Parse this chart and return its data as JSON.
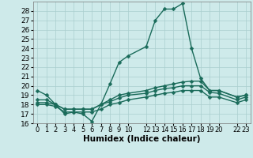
{
  "background_color": "#ceeaea",
  "grid_color": "#aacece",
  "line_color": "#1a6b5a",
  "line_width": 1.0,
  "marker": "D",
  "marker_size": 2.5,
  "xlabel": "Humidex (Indice chaleur)",
  "xlabel_fontsize": 7.5,
  "ylabel_fontsize": 6.5,
  "tick_fontsize": 6.0,
  "ylim": [
    16,
    29
  ],
  "yticks": [
    16,
    17,
    18,
    19,
    20,
    21,
    22,
    23,
    24,
    25,
    26,
    27,
    28
  ],
  "xlim": [
    -0.5,
    23.5
  ],
  "xtick_positions": [
    0,
    1,
    2,
    3,
    4,
    5,
    6,
    7,
    8,
    9,
    10,
    12,
    13,
    14,
    15,
    16,
    17,
    18,
    19,
    20,
    22,
    23
  ],
  "xtick_labels": [
    "0",
    "1",
    "2",
    "3",
    "4",
    "5",
    "6",
    "7",
    "8",
    "9",
    "10",
    "12",
    "13",
    "14",
    "15",
    "16",
    "17",
    "18",
    "19",
    "20",
    "22",
    "23"
  ],
  "series": [
    {
      "x": [
        0,
        1,
        2,
        3,
        4,
        5,
        6,
        7,
        8,
        9,
        10,
        12,
        13,
        14,
        15,
        16,
        17,
        18,
        19,
        20,
        22,
        23
      ],
      "y": [
        19.5,
        19.0,
        18.0,
        17.0,
        17.2,
        17.0,
        16.2,
        18.0,
        20.2,
        22.5,
        23.2,
        24.2,
        27.0,
        28.2,
        28.2,
        28.8,
        24.0,
        20.8,
        19.5,
        19.5,
        18.8,
        19.0
      ]
    },
    {
      "x": [
        0,
        1,
        2,
        3,
        4,
        5,
        6,
        7,
        8,
        9,
        10,
        12,
        13,
        14,
        15,
        16,
        17,
        18,
        19,
        20,
        22,
        23
      ],
      "y": [
        18.5,
        18.5,
        18.0,
        17.5,
        17.5,
        17.5,
        17.5,
        18.0,
        18.5,
        19.0,
        19.2,
        19.5,
        19.8,
        20.0,
        20.2,
        20.4,
        20.5,
        20.5,
        19.5,
        19.5,
        18.8,
        19.0
      ]
    },
    {
      "x": [
        0,
        1,
        2,
        3,
        4,
        5,
        6,
        7,
        8,
        9,
        10,
        12,
        13,
        14,
        15,
        16,
        17,
        18,
        19,
        20,
        22,
        23
      ],
      "y": [
        18.2,
        18.2,
        18.0,
        17.5,
        17.5,
        17.5,
        17.5,
        18.0,
        18.3,
        18.7,
        19.0,
        19.2,
        19.5,
        19.7,
        19.8,
        20.0,
        20.0,
        20.0,
        19.3,
        19.2,
        18.5,
        18.8
      ]
    },
    {
      "x": [
        0,
        1,
        2,
        3,
        4,
        5,
        6,
        7,
        8,
        9,
        10,
        12,
        13,
        14,
        15,
        16,
        17,
        18,
        19,
        20,
        22,
        23
      ],
      "y": [
        18.0,
        18.0,
        17.8,
        17.2,
        17.2,
        17.2,
        17.2,
        17.5,
        18.0,
        18.2,
        18.5,
        18.8,
        19.0,
        19.2,
        19.3,
        19.5,
        19.5,
        19.5,
        18.8,
        18.8,
        18.2,
        18.5
      ]
    }
  ]
}
